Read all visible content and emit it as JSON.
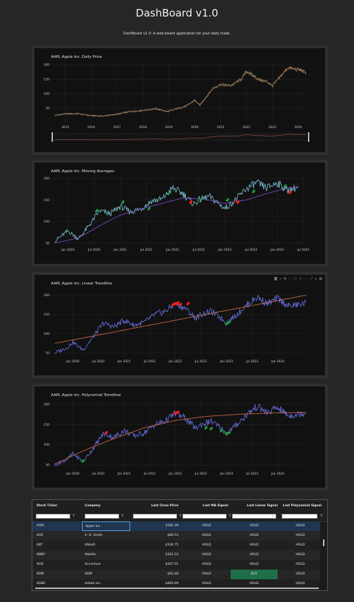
{
  "header": {
    "title": "DashBoard v1.0",
    "subtitle": "DashBoard v1.0: A web-based application for your daily trade."
  },
  "colors": {
    "background": "#262626",
    "plot_bg": "#111111",
    "price_line": "#6874ea",
    "trend_line": "#e0704c",
    "buy_marker": "#1e9a3a",
    "sell_marker": "#ff1a1a",
    "ma_long": "#8a4dd6",
    "ma_short": "#7dc4d4",
    "buy_cell": "#1f6e4a"
  },
  "toolbar_icons": [
    "camera-icon",
    "zoom-icon",
    "pan-icon",
    "box-select-icon",
    "lasso-icon",
    "zoom-in-icon",
    "zoom-out-icon",
    "autoscale-icon",
    "reset-icon",
    "plotly-logo-icon"
  ],
  "charts": [
    {
      "id": "daily-price",
      "title": "AAPL Apple Inc. Daily Price",
      "chart_data": {
        "type": "line",
        "title": "AAPL Apple Inc. Daily Price",
        "x_ticks": [
          "2015",
          "2016",
          "2017",
          "2018",
          "2019",
          "2020",
          "2021",
          "2022",
          "2023",
          "2024"
        ],
        "y_ticks": [
          50,
          100,
          150,
          200
        ],
        "ylim": [
          0,
          210
        ],
        "x_range": [
          2014.5,
          2024.4
        ],
        "series": [
          {
            "x": [
              2014.6,
              2015.0,
              2015.5,
              2016.0,
              2016.5,
              2017.0,
              2017.5,
              2018.0,
              2018.5,
              2018.95,
              2019.3,
              2019.7,
              2020.0,
              2020.2,
              2020.5,
              2020.7,
              2021.0,
              2021.4,
              2021.8,
              2022.0,
              2022.3,
              2022.5,
              2022.8,
              2023.0,
              2023.3,
              2023.6,
              2023.9,
              2024.1,
              2024.3
            ],
            "y": [
              25,
              30,
              31,
              24,
              23,
              29,
              38,
              42,
              48,
              38,
              48,
              58,
              78,
              60,
              95,
              118,
              132,
              128,
              150,
              178,
              160,
              148,
              142,
              128,
              158,
              190,
              185,
              182,
              172
            ]
          }
        ],
        "range_slider": true,
        "grid": true
      }
    },
    {
      "id": "moving-averages",
      "title": "AAPL Apple Inc. Moving Averages",
      "chart_data": {
        "type": "line",
        "title": "AAPL Apple Inc. Moving Averages",
        "x_ticks": [
          "Jan 2020",
          "Jul 2020",
          "Jan 2021",
          "Jul 2021",
          "Jan 2022",
          "Jul 2022",
          "Jan 2023",
          "Jul 2023",
          "Jan 2024",
          "Jul 2024"
        ],
        "y_ticks": [
          50,
          100,
          150,
          200
        ],
        "ylim": [
          45,
          205
        ],
        "x_range": [
          2019.7,
          2024.6
        ],
        "series": [
          {
            "x": [
              2019.75,
              2020.0,
              2020.2,
              2020.4,
              2020.6,
              2020.8,
              2021.0,
              2021.2,
              2021.4,
              2021.6,
              2021.8,
              2022.0,
              2022.2,
              2022.4,
              2022.5,
              2022.7,
              2022.9,
              2023.0,
              2023.2,
              2023.4,
              2023.6,
              2023.8,
              2024.0,
              2024.2,
              2024.4
            ],
            "y": [
              55,
              78,
              60,
              90,
              125,
              118,
              135,
              122,
              130,
              148,
              152,
              178,
              165,
              140,
              150,
              158,
              140,
              130,
              150,
              175,
              190,
              178,
              190,
              172,
              180
            ]
          },
          {
            "x": [
              2019.75,
              2020.2,
              2020.6,
              2021.0,
              2021.4,
              2021.8,
              2022.2,
              2022.6,
              2023.0,
              2023.4,
              2023.8,
              2024.2,
              2024.4
            ],
            "y": [
              50,
              62,
              90,
              115,
              130,
              142,
              155,
              152,
              142,
              150,
              165,
              178,
              180
            ]
          }
        ],
        "buy_signals": {
          "x": [
            2020.55,
            2021.05,
            2021.55,
            2021.95,
            2022.55,
            2023.05,
            2023.55,
            2024.15
          ],
          "y": [
            125,
            145,
            130,
            168,
            152,
            150,
            170,
            182
          ]
        },
        "sell_signals": {
          "x": [
            2022.35,
            2023.25,
            2024.25
          ],
          "y": [
            145,
            145,
            168
          ]
        },
        "grid": true
      }
    },
    {
      "id": "linear-trendline",
      "title": "AAPL Apple Inc. Linear Trendline",
      "chart_data": {
        "type": "line",
        "title": "AAPL Apple Inc. Linear Trendline",
        "x_ticks": [
          "Jan 2020",
          "Jul 2020",
          "Jan 2021",
          "Jul 2021",
          "Jan 2022",
          "Jul 2022",
          "Jan 2023",
          "Jul 2023",
          "Jan 2024"
        ],
        "y_ticks": [
          50,
          100,
          150,
          200
        ],
        "ylim": [
          40,
          210
        ],
        "x_range": [
          2019.6,
          2024.6
        ],
        "series": [
          {
            "x": [
              2019.65,
              2019.9,
              2020.0,
              2020.2,
              2020.4,
              2020.6,
              2020.8,
              2021.0,
              2021.2,
              2021.4,
              2021.6,
              2021.8,
              2022.0,
              2022.2,
              2022.4,
              2022.5,
              2022.7,
              2022.9,
              2023.0,
              2023.2,
              2023.4,
              2023.6,
              2023.8,
              2024.0,
              2024.2,
              2024.4,
              2024.55
            ],
            "y": [
              50,
              65,
              78,
              58,
              92,
              128,
              118,
              135,
              122,
              130,
              150,
              158,
              178,
              165,
              140,
              150,
              158,
              140,
              128,
              150,
              175,
              195,
              178,
              192,
              172,
              175,
              180
            ]
          },
          {
            "x": [
              2019.65,
              2024.55
            ],
            "y": [
              75,
              200
            ]
          }
        ],
        "sell_signals": {
          "x": [
            2021.95,
            2022.0,
            2022.05,
            2022.1,
            2022.25
          ],
          "y": [
            175,
            178,
            180,
            176,
            178
          ]
        },
        "buy_signals": {
          "x": [
            2023.0,
            2023.05
          ],
          "y": [
            126,
            130
          ]
        },
        "grid": true
      }
    },
    {
      "id": "polynomial-trendline",
      "title": "AAPL Apple Inc. Polynomial Trendline",
      "chart_data": {
        "type": "line",
        "title": "AAPL Apple Inc. Polynomial Trendline",
        "x_ticks": [
          "Jan 2020",
          "Jul 2020",
          "Jan 2021",
          "Jul 2021",
          "Jan 2022",
          "Jul 2022",
          "Jan 2023",
          "Jul 2023",
          "Jan 2024"
        ],
        "y_ticks": [
          50,
          100,
          150,
          200
        ],
        "ylim": [
          40,
          210
        ],
        "x_range": [
          2019.6,
          2024.6
        ],
        "series": [
          {
            "x": [
              2019.65,
              2019.9,
              2020.0,
              2020.2,
              2020.4,
              2020.6,
              2020.8,
              2021.0,
              2021.2,
              2021.4,
              2021.6,
              2021.8,
              2022.0,
              2022.2,
              2022.4,
              2022.5,
              2022.7,
              2022.9,
              2023.0,
              2023.2,
              2023.4,
              2023.6,
              2023.8,
              2024.0,
              2024.2,
              2024.4,
              2024.55
            ],
            "y": [
              50,
              65,
              78,
              58,
              92,
              128,
              118,
              135,
              122,
              130,
              150,
              158,
              178,
              165,
              140,
              150,
              158,
              140,
              128,
              150,
              175,
              195,
              178,
              192,
              172,
              175,
              180
            ]
          },
          {
            "x": [
              2019.65,
              2020.2,
              2020.8,
              2021.4,
              2022.0,
              2022.6,
              2023.2,
              2023.8,
              2024.55
            ],
            "y": [
              52,
              85,
              115,
              142,
              160,
              170,
              175,
              178,
              180
            ]
          }
        ],
        "sell_signals": {
          "x": [
            2020.65,
            2022.0,
            2022.05
          ],
          "y": [
            130,
            178,
            180
          ]
        },
        "buy_signals": {
          "x": [
            2020.2,
            2022.6,
            2022.7,
            2022.9,
            2023.0,
            2023.05
          ],
          "y": [
            60,
            142,
            140,
            135,
            128,
            130
          ]
        },
        "grid": true
      }
    }
  ],
  "table": {
    "columns": [
      "Stock Ticker",
      "Company",
      "Last Close Price",
      "Last MA Signal",
      "Last Linear Signal",
      "Last Polynomial Signal"
    ],
    "rows": [
      [
        "AAPL",
        "Apple Inc.",
        "$182.39",
        "HOLD",
        "HOLD",
        "HOLD"
      ],
      [
        "AOS",
        "A. O. Smith",
        "$86.53",
        "HOLD",
        "HOLD",
        "HOLD"
      ],
      [
        "ABT",
        "Abbott",
        "$104.75",
        "HOLD",
        "HOLD",
        "HOLD"
      ],
      [
        "ABBV",
        "AbbVie",
        "$161.10",
        "HOLD",
        "HOLD",
        "HOLD"
      ],
      [
        "ACN",
        "Accenture",
        "$307.01",
        "HOLD",
        "HOLD",
        "HOLD"
      ],
      [
        "ADM",
        "ADM",
        "$62.48",
        "HOLD",
        "BUY",
        "HOLD"
      ],
      [
        "ADBE",
        "Adobe Inc.",
        "$483.99",
        "HOLD",
        "HOLD",
        "HOLD"
      ]
    ]
  }
}
